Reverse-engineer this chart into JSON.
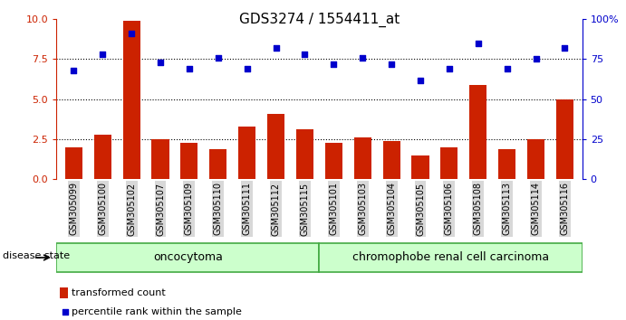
{
  "title": "GDS3274 / 1554411_at",
  "samples": [
    "GSM305099",
    "GSM305100",
    "GSM305102",
    "GSM305107",
    "GSM305109",
    "GSM305110",
    "GSM305111",
    "GSM305112",
    "GSM305115",
    "GSM305101",
    "GSM305103",
    "GSM305104",
    "GSM305105",
    "GSM305106",
    "GSM305108",
    "GSM305113",
    "GSM305114",
    "GSM305116"
  ],
  "bar_values": [
    2.0,
    2.8,
    9.9,
    2.5,
    2.3,
    1.9,
    3.3,
    4.1,
    3.1,
    2.3,
    2.6,
    2.4,
    1.5,
    2.0,
    5.9,
    1.9,
    2.5,
    5.0
  ],
  "dot_values": [
    68,
    78,
    91,
    73,
    69,
    76,
    69,
    82,
    78,
    72,
    76,
    72,
    62,
    69,
    85,
    69,
    75,
    82
  ],
  "bar_color": "#cc2200",
  "dot_color": "#0000cc",
  "ylim_left": [
    0,
    10
  ],
  "ylim_right": [
    0,
    100
  ],
  "yticks_left": [
    0,
    2.5,
    5.0,
    7.5,
    10
  ],
  "yticks_right": [
    0,
    25,
    50,
    75,
    100
  ],
  "hlines": [
    2.5,
    5.0,
    7.5
  ],
  "oncocytoma_count": 9,
  "chromophobe_count": 9,
  "oncocytoma_label": "oncocytoma",
  "chromophobe_label": "chromophobe renal cell carcinoma",
  "group_bg_color": "#ccffcc",
  "group_edge_color": "#44aa44",
  "disease_state_label": "disease state",
  "legend_bar_label": "transformed count",
  "legend_dot_label": "percentile rank within the sample",
  "bar_width": 0.6,
  "bg_color": "#ffffff",
  "tick_label_bg": "#d8d8d8"
}
